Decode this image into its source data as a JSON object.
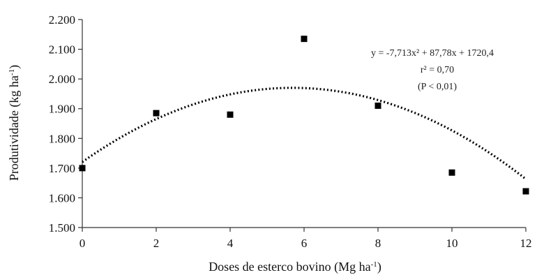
{
  "chart_data": {
    "type": "scatter",
    "xlabel": "Doses de esterco bovino (Mg ha",
    "xlabel_sup": "-1",
    "xlabel_end": ")",
    "ylabel": "Produtividade (kg ha",
    "ylabel_sup": "-1",
    "ylabel_end": ")",
    "xlim": [
      0,
      12
    ],
    "ylim": [
      1500,
      2200
    ],
    "x_ticks": [
      0,
      2,
      4,
      6,
      8,
      10,
      12
    ],
    "x_tick_labels": [
      "0",
      "2",
      "4",
      "6",
      "8",
      "10",
      "12"
    ],
    "y_ticks": [
      1500,
      1600,
      1700,
      1800,
      1900,
      2000,
      2100,
      2200
    ],
    "y_tick_labels": [
      "1.500",
      "1.600",
      "1.700",
      "1.800",
      "1.900",
      "2.000",
      "2.100",
      "2.200"
    ],
    "grid": false,
    "series": [
      {
        "kind": "points",
        "marker": "square",
        "color": "#000000",
        "x": [
          0,
          2,
          4,
          6,
          8,
          10,
          12
        ],
        "y": [
          1700,
          1885,
          1880,
          2135,
          1910,
          1685,
          1622
        ]
      },
      {
        "kind": "fit",
        "style": "dotted",
        "color": "#000000",
        "coefficients": {
          "a": -7.713,
          "b": 87.78,
          "c": 1720.4
        }
      }
    ],
    "annotations": {
      "equation": "y = -7,713x² + 87,78x + 1720,4",
      "r2": "r² = 0,70",
      "p": "(P < 0,01)"
    }
  }
}
